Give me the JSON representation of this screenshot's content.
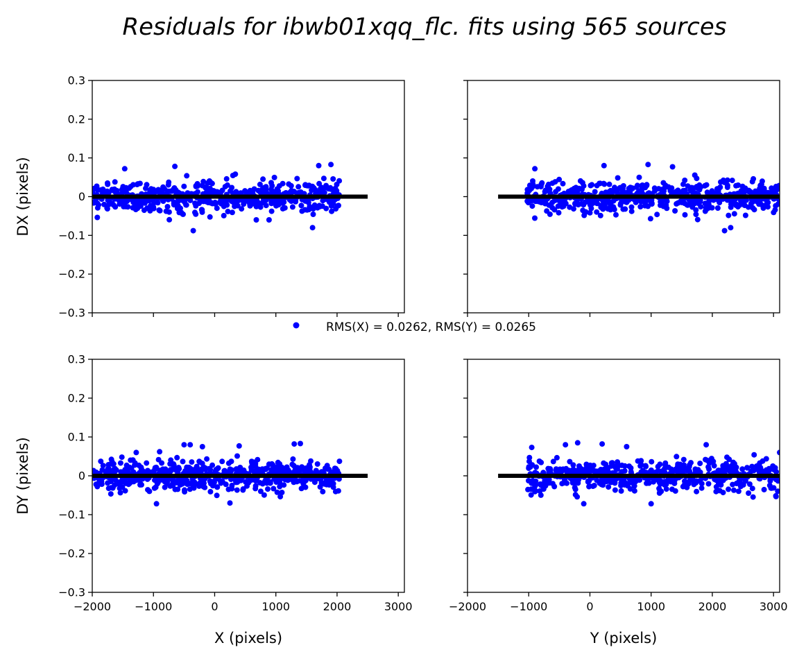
{
  "figure": {
    "title": "Residuals for ibwb01xqq_flc. fits using 565 sources",
    "legend": "RMS(X) = 0.0262, RMS(Y) = 0.0265",
    "n_sources": 565,
    "colors": {
      "points": "#0000ff",
      "zero_line": "#000000"
    }
  },
  "chart_data": [
    {
      "id": "dx-vs-x",
      "type": "scatter",
      "ylabel": "DX (pixels)",
      "xlabel": "",
      "xlim": [
        -2000,
        3100
      ],
      "ylim": [
        -0.3,
        0.3
      ],
      "xticks": [
        -2000,
        -1000,
        0,
        1000,
        2000,
        3000
      ],
      "yticks": [
        -0.3,
        -0.2,
        -0.1,
        0.0,
        0.1,
        0.2,
        0.3
      ],
      "show_xticklabels": false,
      "show_yticklabels": true,
      "x_range_of_points": [
        -2000,
        2040
      ],
      "zero_line": {
        "x": [
          -2000,
          2500
        ],
        "y": 0.0
      },
      "notable_points": [
        [
          -1470,
          0.072
        ],
        [
          -650,
          0.078
        ],
        [
          -350,
          -0.088
        ],
        [
          1600,
          -0.08
        ],
        [
          1700,
          0.08
        ],
        [
          1900,
          0.083
        ]
      ],
      "spread_sd": 0.026
    },
    {
      "id": "dx-vs-y",
      "type": "scatter",
      "ylabel": "",
      "xlabel": "",
      "xlim": [
        -2000,
        3100
      ],
      "ylim": [
        -0.3,
        0.3
      ],
      "xticks": [
        -2000,
        -1000,
        0,
        1000,
        2000,
        3000
      ],
      "yticks": [
        -0.3,
        -0.2,
        -0.1,
        0.0,
        0.1,
        0.2,
        0.3
      ],
      "show_xticklabels": false,
      "show_yticklabels": false,
      "x_range_of_points": [
        -1030,
        3100
      ],
      "zero_line": {
        "x": [
          -1500,
          3100
        ],
        "y": 0.0
      },
      "notable_points": [
        [
          -900,
          0.072
        ],
        [
          230,
          0.08
        ],
        [
          950,
          0.083
        ],
        [
          1350,
          0.077
        ],
        [
          2200,
          -0.088
        ],
        [
          2300,
          -0.08
        ]
      ],
      "spread_sd": 0.026
    },
    {
      "id": "dy-vs-x",
      "type": "scatter",
      "ylabel": "DY (pixels)",
      "xlabel": "X (pixels)",
      "xlim": [
        -2000,
        3100
      ],
      "ylim": [
        -0.3,
        0.3
      ],
      "xticks": [
        -2000,
        -1000,
        0,
        1000,
        2000,
        3000
      ],
      "yticks": [
        -0.3,
        -0.2,
        -0.1,
        0.0,
        0.1,
        0.2,
        0.3
      ],
      "show_xticklabels": true,
      "show_yticklabels": true,
      "x_range_of_points": [
        -2000,
        2040
      ],
      "zero_line": {
        "x": [
          -2000,
          2500
        ],
        "y": 0.0
      },
      "notable_points": [
        [
          -900,
          0.062
        ],
        [
          -500,
          0.08
        ],
        [
          -400,
          0.08
        ],
        [
          -200,
          0.075
        ],
        [
          400,
          0.077
        ],
        [
          1300,
          0.082
        ],
        [
          1400,
          0.083
        ],
        [
          -950,
          -0.072
        ],
        [
          250,
          -0.07
        ]
      ],
      "spread_sd": 0.026
    },
    {
      "id": "dy-vs-y",
      "type": "scatter",
      "ylabel": "",
      "xlabel": "Y (pixels)",
      "xlim": [
        -2000,
        3100
      ],
      "ylim": [
        -0.3,
        0.3
      ],
      "xticks": [
        -2000,
        -1000,
        0,
        1000,
        2000,
        3000
      ],
      "yticks": [
        -0.3,
        -0.2,
        -0.1,
        0.0,
        0.1,
        0.2,
        0.3
      ],
      "show_xticklabels": true,
      "show_yticklabels": false,
      "x_range_of_points": [
        -1030,
        3100
      ],
      "zero_line": {
        "x": [
          -1500,
          3100
        ],
        "y": 0.0
      },
      "notable_points": [
        [
          -950,
          0.073
        ],
        [
          -400,
          0.08
        ],
        [
          -200,
          0.085
        ],
        [
          200,
          0.082
        ],
        [
          600,
          0.075
        ],
        [
          1900,
          0.08
        ],
        [
          3100,
          0.06
        ],
        [
          -100,
          -0.072
        ],
        [
          1000,
          -0.072
        ]
      ],
      "spread_sd": 0.026
    }
  ]
}
